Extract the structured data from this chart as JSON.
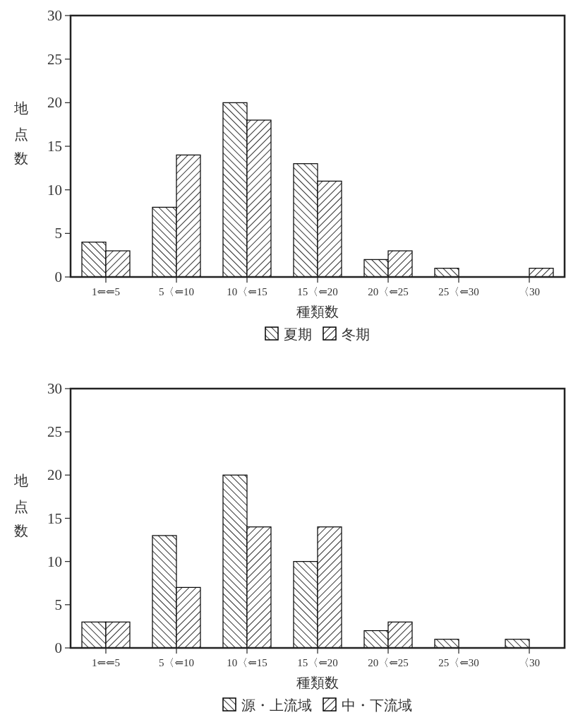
{
  "chart_data": [
    {
      "type": "bar",
      "categories": [
        "1⇐⇐5",
        "5〈⇐10",
        "10〈⇐15",
        "15〈⇐20",
        "20〈⇐25",
        "25〈⇐30",
        "〈30"
      ],
      "xlabel": "種類数",
      "ylabel": "地点数",
      "ylim": [
        0,
        30
      ],
      "yticks": [
        0,
        5,
        10,
        15,
        20,
        25,
        30
      ],
      "legend": "bottom",
      "series": [
        {
          "name": "夏期",
          "color": "#000000",
          "values": [
            4,
            8,
            20,
            13,
            2,
            1,
            0
          ]
        },
        {
          "name": "冬期",
          "color": "#000000",
          "values": [
            3,
            14,
            18,
            11,
            3,
            0,
            1
          ]
        }
      ]
    },
    {
      "type": "bar",
      "categories": [
        "1⇐⇐5",
        "5〈⇐10",
        "10〈⇐15",
        "15〈⇐20",
        "20〈⇐25",
        "25〈⇐30",
        "〈30"
      ],
      "xlabel": "種類数",
      "ylabel": "地点数",
      "ylim": [
        0,
        30
      ],
      "yticks": [
        0,
        5,
        10,
        15,
        20,
        25,
        30
      ],
      "legend": "bottom",
      "series": [
        {
          "name": "源・上流域",
          "color": "#000000",
          "values": [
            3,
            13,
            20,
            10,
            2,
            1,
            1
          ]
        },
        {
          "name": "中・下流域",
          "color": "#000000",
          "values": [
            3,
            7,
            14,
            14,
            3,
            0,
            0
          ]
        }
      ]
    }
  ]
}
